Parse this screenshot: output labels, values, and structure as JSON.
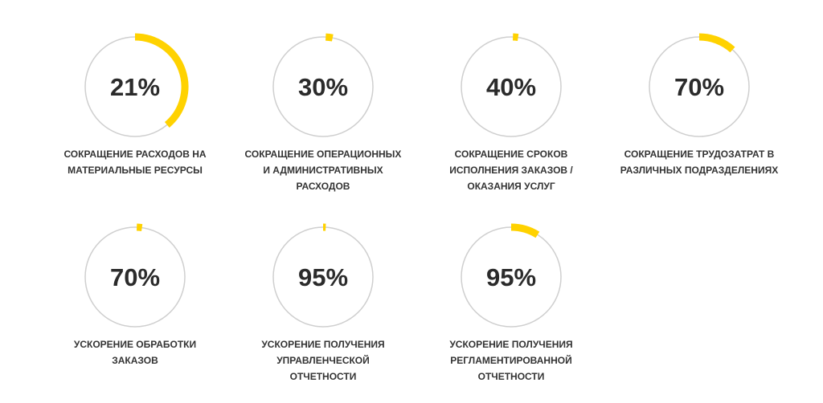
{
  "items": [
    {
      "value": "21%",
      "label_lines": [
        "СОКРАЩЕНИЕ РАСХОДОВ НА",
        "МАТЕРИАЛЬНЫЕ РЕСУРСЫ"
      ]
    },
    {
      "value": "30%",
      "label_lines": [
        "СОКРАЩЕНИЕ ОПЕРАЦИОННЫХ",
        "И АДМИНИСТРАТИВНЫХ",
        "РАСХОДОВ"
      ]
    },
    {
      "value": "40%",
      "label_lines": [
        "СОКРАЩЕНИЕ СРОКОВ",
        "ИСПОЛНЕНИЯ ЗАКАЗОВ /",
        "ОКАЗАНИЯ УСЛУГ"
      ]
    },
    {
      "value": "70%",
      "label_lines": [
        "СОКРАЩЕНИЕ ТРУДОЗАТРАТ В",
        "РАЗЛИЧНЫХ ПОДРАЗДЕЛЕНИЯХ"
      ]
    },
    {
      "value": "70%",
      "label_lines": [
        "УСКОРЕНИЕ ОБРАБОТКИ",
        "ЗАКАЗОВ"
      ]
    },
    {
      "value": "95%",
      "label_lines": [
        "УСКОРЕНИЕ ПОЛУЧЕНИЯ",
        "УПРАВЛЕНЧЕСКОЙ",
        "ОТЧЕТНОСТИ"
      ]
    },
    {
      "value": "95%",
      "label_lines": [
        "УСКОРЕНИЕ ПОЛУЧЕНИЯ",
        "РЕГЛАМЕНТИРОВАННОЙ",
        "ОТЧЕТНОСТИ"
      ]
    }
  ]
}
